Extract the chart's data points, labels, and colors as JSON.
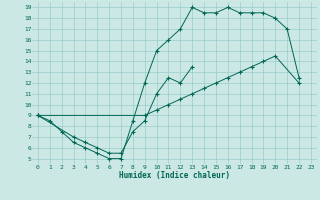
{
  "title": "",
  "xlabel": "Humidex (Indice chaleur)",
  "bg_color": "#cce8e4",
  "grid_color": "#99cccc",
  "line_color": "#006655",
  "xlim": [
    -0.5,
    23.5
  ],
  "ylim": [
    4.5,
    19.5
  ],
  "xticks": [
    0,
    1,
    2,
    3,
    4,
    5,
    6,
    7,
    8,
    9,
    10,
    11,
    12,
    13,
    14,
    15,
    16,
    17,
    18,
    19,
    20,
    21,
    22,
    23
  ],
  "yticks": [
    5,
    6,
    7,
    8,
    9,
    10,
    11,
    12,
    13,
    14,
    15,
    16,
    17,
    18,
    19
  ],
  "line1": {
    "x": [
      0,
      1,
      2,
      3,
      4,
      5,
      6,
      7,
      8,
      9,
      10,
      11,
      12,
      13,
      14,
      15,
      16,
      17,
      18,
      19,
      20,
      21,
      22
    ],
    "y": [
      9.0,
      8.5,
      7.5,
      6.5,
      6.0,
      5.5,
      5.0,
      5.0,
      8.5,
      12.0,
      15.0,
      16.0,
      17.0,
      19.0,
      18.5,
      18.5,
      19.0,
      18.5,
      18.5,
      18.5,
      18.0,
      17.0,
      12.5
    ]
  },
  "line2": {
    "x": [
      0,
      3,
      4,
      5,
      6,
      7,
      8,
      9,
      10,
      11,
      12,
      13
    ],
    "y": [
      9.0,
      7.0,
      6.5,
      6.0,
      5.5,
      5.5,
      7.5,
      8.5,
      11.0,
      12.5,
      12.0,
      13.5
    ]
  },
  "line3": {
    "x": [
      0,
      9,
      10,
      11,
      12,
      13,
      14,
      15,
      16,
      17,
      18,
      19,
      20,
      22
    ],
    "y": [
      9.0,
      9.0,
      9.5,
      10.0,
      10.5,
      11.0,
      11.5,
      12.0,
      12.5,
      13.0,
      13.5,
      14.0,
      14.5,
      12.0
    ]
  }
}
